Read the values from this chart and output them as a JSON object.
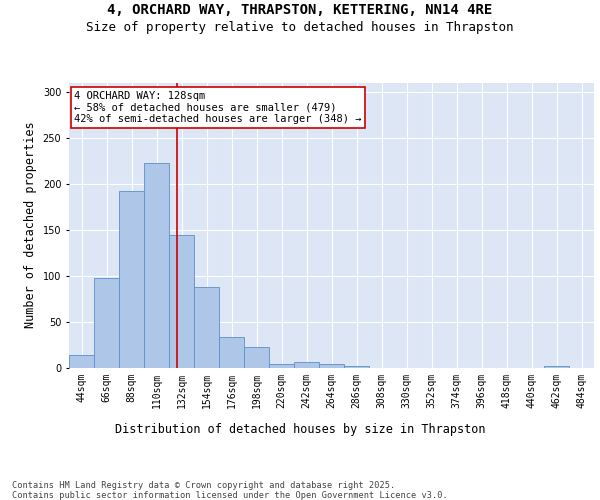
{
  "title": "4, ORCHARD WAY, THRAPSTON, KETTERING, NN14 4RE",
  "subtitle": "Size of property relative to detached houses in Thrapston",
  "xlabel": "Distribution of detached houses by size in Thrapston",
  "ylabel": "Number of detached properties",
  "bar_values": [
    14,
    97,
    192,
    222,
    144,
    88,
    33,
    22,
    4,
    6,
    4,
    2,
    0,
    0,
    0,
    0,
    0,
    0,
    0,
    2,
    0
  ],
  "bin_labels": [
    "44sqm",
    "66sqm",
    "88sqm",
    "110sqm",
    "132sqm",
    "154sqm",
    "176sqm",
    "198sqm",
    "220sqm",
    "242sqm",
    "264sqm",
    "286sqm",
    "308sqm",
    "330sqm",
    "352sqm",
    "374sqm",
    "396sqm",
    "418sqm",
    "440sqm",
    "462sqm",
    "484sqm"
  ],
  "bar_color": "#aec6e8",
  "bar_edge_color": "#5b8fc9",
  "background_color": "#dce6f5",
  "grid_color": "#ffffff",
  "red_line_x": 3.82,
  "annotation_text": "4 ORCHARD WAY: 128sqm\n← 58% of detached houses are smaller (479)\n42% of semi-detached houses are larger (348) →",
  "annotation_box_color": "#ffffff",
  "annotation_box_edge": "#cc0000",
  "ylim": [
    0,
    310
  ],
  "yticks": [
    0,
    50,
    100,
    150,
    200,
    250,
    300
  ],
  "footer_text": "Contains HM Land Registry data © Crown copyright and database right 2025.\nContains public sector information licensed under the Open Government Licence v3.0.",
  "title_fontsize": 10,
  "subtitle_fontsize": 9,
  "axis_label_fontsize": 8.5,
  "tick_fontsize": 7,
  "annotation_fontsize": 7.5,
  "footer_fontsize": 6.2
}
